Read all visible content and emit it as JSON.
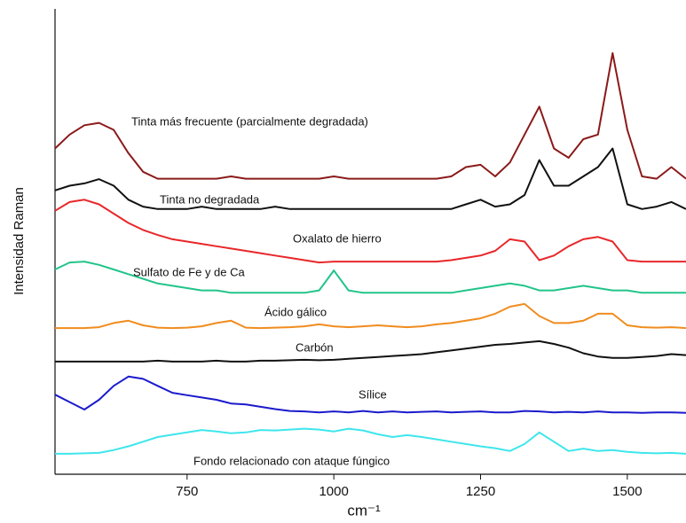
{
  "chart_data": {
    "type": "line",
    "x_label": "cm⁻¹",
    "y_label": "Intensidad Raman",
    "xlim": [
      525,
      1600
    ],
    "xticks": [
      750,
      1000,
      1250,
      1500
    ],
    "ylim": [
      0,
      100
    ],
    "x": [
      525,
      550,
      575,
      600,
      625,
      650,
      675,
      700,
      725,
      750,
      775,
      800,
      825,
      850,
      875,
      900,
      925,
      950,
      975,
      1000,
      1025,
      1050,
      1075,
      1100,
      1125,
      1150,
      1175,
      1200,
      1225,
      1250,
      1275,
      1300,
      1325,
      1350,
      1375,
      1400,
      1425,
      1450,
      1475,
      1500,
      1525,
      1550,
      1575,
      1600
    ],
    "series": [
      {
        "name": "Tinta más frecuente (parcialmente degradada)",
        "color": "#8b1a1a",
        "values": [
          70,
          73,
          75,
          75.5,
          74,
          69,
          65,
          63.5,
          63.5,
          63.5,
          63.5,
          63.5,
          64,
          63.5,
          63.5,
          63.5,
          63.5,
          63.5,
          63.5,
          64,
          63.5,
          63.5,
          63.5,
          63.5,
          63.5,
          63.5,
          63.5,
          64,
          66,
          66.5,
          64,
          67,
          73,
          79,
          70,
          68,
          72,
          73,
          90.5,
          74,
          64,
          63.5,
          66,
          63.5
        ]
      },
      {
        "name": "Tinta no degradada",
        "color": "#111111",
        "values": [
          61,
          62,
          62.5,
          63.4,
          62,
          59,
          57.5,
          57,
          57,
          57,
          57.5,
          57,
          57,
          57,
          57,
          57.5,
          57,
          57,
          57,
          57,
          57,
          57,
          57,
          57,
          57,
          57,
          57,
          57,
          58,
          59,
          57.5,
          58,
          60,
          67.5,
          62,
          62,
          64,
          66,
          70,
          58,
          57,
          57.5,
          58.5,
          57
        ]
      },
      {
        "name": "Oxalato de hierro",
        "color": "#e8272a",
        "values": [
          56.6,
          58.5,
          59,
          58,
          56,
          54,
          52.5,
          51.4,
          50.5,
          50,
          49.5,
          49,
          48.5,
          48,
          47.5,
          47,
          46.5,
          46,
          45.5,
          45.7,
          45.7,
          45.7,
          45.7,
          45.7,
          45.7,
          45.7,
          45.7,
          46,
          46.5,
          47,
          48,
          50.5,
          50,
          46,
          47,
          49,
          50.5,
          51,
          50,
          46,
          45.7,
          45.7,
          45.7,
          45.7
        ]
      },
      {
        "name": "Sulfato de Fe y de Ca",
        "color": "#22c48a",
        "values": [
          44,
          45.5,
          45.7,
          45,
          44,
          43,
          42,
          41,
          40.5,
          40,
          39.5,
          39.5,
          39,
          39,
          39,
          39,
          39,
          39,
          39.5,
          43.8,
          39.5,
          39,
          39,
          39,
          39,
          39,
          39,
          39,
          39.5,
          40,
          40.5,
          41,
          40.5,
          39.5,
          39.5,
          40,
          40.5,
          40,
          39.5,
          39.5,
          39,
          39,
          39,
          39
        ]
      },
      {
        "name": "Ácido gálico",
        "color": "#f08c1e",
        "values": [
          31.4,
          31.4,
          31.4,
          31.6,
          32.5,
          33,
          32,
          31.5,
          31.4,
          31.5,
          31.8,
          32.5,
          33,
          31.5,
          31.4,
          31.5,
          31.6,
          31.8,
          32.2,
          31.8,
          31.6,
          31.8,
          32,
          31.8,
          31.6,
          31.8,
          32.2,
          32.5,
          33,
          33.5,
          34.5,
          36,
          36.6,
          34,
          32.5,
          32.5,
          33,
          34.5,
          34.5,
          32,
          31.6,
          31.5,
          31.6,
          31.4
        ]
      },
      {
        "name": "Carbón",
        "color": "#111111",
        "values": [
          24.2,
          24.2,
          24.2,
          24.2,
          24.2,
          24.2,
          24.2,
          24.4,
          24.2,
          24.2,
          24.2,
          24.4,
          24.2,
          24.2,
          24.4,
          24.4,
          24.5,
          24.6,
          24.5,
          24.6,
          24.8,
          25,
          25.2,
          25.4,
          25.6,
          25.8,
          26.2,
          26.6,
          27,
          27.4,
          27.8,
          28,
          28.3,
          28.6,
          28,
          27.2,
          26,
          25.3,
          25,
          25,
          25.2,
          25.4,
          25.8,
          25.6
        ]
      },
      {
        "name": "Sílice",
        "color": "#1a1acc",
        "values": [
          17.1,
          15.5,
          13.9,
          16,
          19,
          21,
          20.5,
          19,
          17.5,
          17,
          16.5,
          16,
          15.2,
          15,
          14.5,
          14,
          13.6,
          13.5,
          13.3,
          13.5,
          13.3,
          13.6,
          13.3,
          13.5,
          13.3,
          13.4,
          13.5,
          13.3,
          13.4,
          13.5,
          13.3,
          13.3,
          13.6,
          13.5,
          13.3,
          13.4,
          13.3,
          13.5,
          13.3,
          13.3,
          13.2,
          13.3,
          13.3,
          13.2
        ]
      },
      {
        "name": "Fondo relacionado con ataque fúngico",
        "color": "#3ee6ec",
        "values": [
          4.4,
          4.4,
          4.5,
          4.6,
          5.2,
          6,
          7,
          8,
          8.5,
          9,
          9.5,
          9.2,
          8.8,
          9,
          9.5,
          9.4,
          9.6,
          9.8,
          9.6,
          9.2,
          9.8,
          9.4,
          8.6,
          8,
          8.4,
          8,
          7.5,
          7,
          6.5,
          6,
          5.6,
          5,
          6.5,
          9,
          7,
          5,
          5.5,
          5,
          5.2,
          4.8,
          4.6,
          4.5,
          4.6,
          4.4
        ]
      }
    ]
  }
}
